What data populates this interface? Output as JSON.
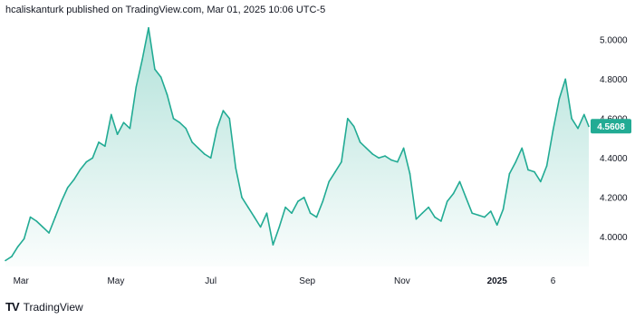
{
  "header": {
    "published_text": "hcaliskanturk published on TradingView.com, Mar 01, 2025 10:06 UTC-5"
  },
  "footer": {
    "brand_logo": "TV",
    "brand_name": "TradingView"
  },
  "price_badge": {
    "value": "4.5608",
    "color": "#22ab94"
  },
  "chart_data": {
    "type": "area",
    "line_color": "#22ab94",
    "fill_color": "#22ab94",
    "title": "",
    "xlabel": "",
    "ylabel": "",
    "ylim": [
      3.85,
      5.1
    ],
    "y_ticks": [
      "5.0000",
      "4.8000",
      "4.6000",
      "4.4000",
      "4.2000",
      "4.0000"
    ],
    "y_tick_values": [
      5.0,
      4.8,
      4.6,
      4.4,
      4.2,
      4.0
    ],
    "x_ticks": [
      {
        "label": "Mar",
        "date": "2024-03-01",
        "bold": false
      },
      {
        "label": "May",
        "date": "2024-05-01",
        "bold": false
      },
      {
        "label": "Jul",
        "date": "2024-07-01",
        "bold": false
      },
      {
        "label": "Sep",
        "date": "2024-09-01",
        "bold": false
      },
      {
        "label": "Nov",
        "date": "2024-11-01",
        "bold": false
      },
      {
        "label": "2025",
        "date": "2025-01-01",
        "bold": true
      },
      {
        "label": "6",
        "date": "2025-02-06",
        "bold": false
      }
    ],
    "grid": false,
    "legend": "none",
    "series": [
      {
        "x": [
          "2024-02-20",
          "2024-02-24",
          "2024-02-28",
          "2024-03-03",
          "2024-03-07",
          "2024-03-11",
          "2024-03-15",
          "2024-03-19",
          "2024-03-23",
          "2024-03-27",
          "2024-03-31",
          "2024-04-04",
          "2024-04-08",
          "2024-04-12",
          "2024-04-16",
          "2024-04-20",
          "2024-04-24",
          "2024-04-28",
          "2024-05-02",
          "2024-05-06",
          "2024-05-10",
          "2024-05-14",
          "2024-05-18",
          "2024-05-22",
          "2024-05-26",
          "2024-05-30",
          "2024-06-03",
          "2024-06-07",
          "2024-06-11",
          "2024-06-15",
          "2024-06-19",
          "2024-06-23",
          "2024-06-27",
          "2024-07-01",
          "2024-07-05",
          "2024-07-09",
          "2024-07-13",
          "2024-07-17",
          "2024-07-21",
          "2024-07-25",
          "2024-07-29",
          "2024-08-02",
          "2024-08-06",
          "2024-08-10",
          "2024-08-14",
          "2024-08-18",
          "2024-08-22",
          "2024-08-26",
          "2024-08-30",
          "2024-09-03",
          "2024-09-07",
          "2024-09-11",
          "2024-09-15",
          "2024-09-19",
          "2024-09-23",
          "2024-09-27",
          "2024-10-01",
          "2024-10-05",
          "2024-10-09",
          "2024-10-13",
          "2024-10-17",
          "2024-10-21",
          "2024-10-25",
          "2024-10-29",
          "2024-11-02",
          "2024-11-06",
          "2024-11-10",
          "2024-11-14",
          "2024-11-18",
          "2024-11-22",
          "2024-11-26",
          "2024-11-30",
          "2024-12-04",
          "2024-12-08",
          "2024-12-12",
          "2024-12-16",
          "2024-12-20",
          "2024-12-24",
          "2024-12-28",
          "2025-01-01",
          "2025-01-05",
          "2025-01-09",
          "2025-01-13",
          "2025-01-17",
          "2025-01-21",
          "2025-01-25",
          "2025-01-29",
          "2025-02-02",
          "2025-02-06",
          "2025-02-10",
          "2025-02-14",
          "2025-02-18",
          "2025-02-22",
          "2025-02-26",
          "2025-03-01"
        ],
        "values": [
          3.88,
          3.9,
          3.95,
          3.99,
          4.1,
          4.08,
          4.05,
          4.02,
          4.1,
          4.18,
          4.25,
          4.29,
          4.34,
          4.38,
          4.4,
          4.48,
          4.46,
          4.62,
          4.52,
          4.58,
          4.55,
          4.76,
          4.9,
          5.06,
          4.85,
          4.81,
          4.72,
          4.6,
          4.58,
          4.55,
          4.48,
          4.45,
          4.42,
          4.4,
          4.55,
          4.64,
          4.6,
          4.35,
          4.2,
          4.15,
          4.1,
          4.05,
          4.12,
          3.96,
          4.05,
          4.15,
          4.12,
          4.18,
          4.2,
          4.12,
          4.1,
          4.18,
          4.28,
          4.33,
          4.38,
          4.6,
          4.56,
          4.48,
          4.45,
          4.42,
          4.4,
          4.41,
          4.39,
          4.38,
          4.45,
          4.32,
          4.09,
          4.12,
          4.15,
          4.1,
          4.08,
          4.18,
          4.22,
          4.28,
          4.2,
          4.12,
          4.11,
          4.1,
          4.13,
          4.06,
          4.14,
          4.32,
          4.38,
          4.45,
          4.34,
          4.33,
          4.28,
          4.36,
          4.54,
          4.7,
          4.8,
          4.6,
          4.55,
          4.62,
          4.56
        ]
      }
    ]
  }
}
